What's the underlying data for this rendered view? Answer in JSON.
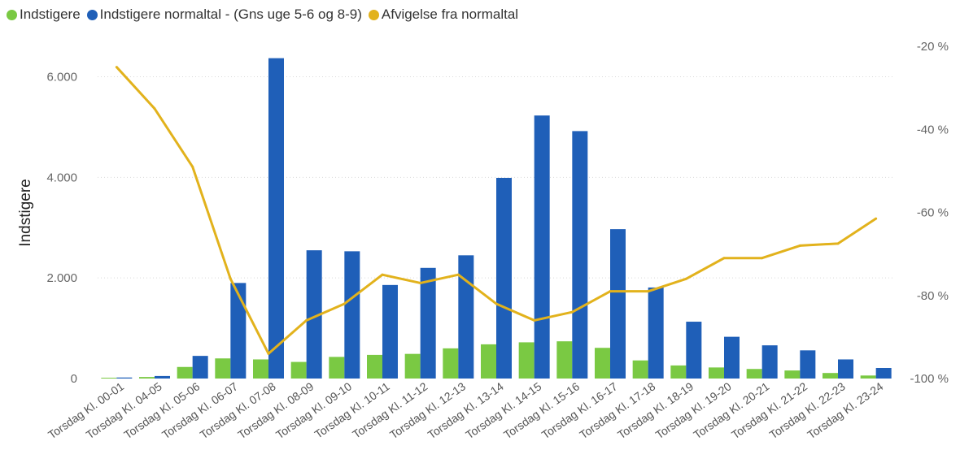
{
  "chart_data": {
    "type": "bar+line",
    "categories": [
      "Torsdag Kl. 00-01",
      "Torsdag Kl. 04-05",
      "Torsdag Kl. 05-06",
      "Torsdag Kl. 06-07",
      "Torsdag Kl. 07-08",
      "Torsdag Kl. 08-09",
      "Torsdag Kl. 09-10",
      "Torsdag Kl. 10-11",
      "Torsdag Kl. 11-12",
      "Torsdag Kl. 12-13",
      "Torsdag Kl. 13-14",
      "Torsdag Kl. 14-15",
      "Torsdag Kl. 15-16",
      "Torsdag Kl. 16-17",
      "Torsdag Kl. 17-18",
      "Torsdag Kl. 18-19",
      "Torsdag Kl. 19-20",
      "Torsdag Kl. 20-21",
      "Torsdag Kl. 21-22",
      "Torsdag Kl. 22-23",
      "Torsdag Kl. 23-24"
    ],
    "series": [
      {
        "name": "Indstigere",
        "kind": "bar",
        "axis": "left",
        "color": "#7ac943",
        "values": [
          10,
          30,
          230,
          400,
          380,
          330,
          430,
          470,
          490,
          600,
          680,
          720,
          740,
          610,
          360,
          260,
          220,
          190,
          160,
          110,
          60
        ]
      },
      {
        "name": "Indstigere normaltal - (Gns uge 5-6 og 8-9)",
        "kind": "bar",
        "axis": "left",
        "color": "#1f5fb8",
        "values": [
          20,
          50,
          450,
          1900,
          6370,
          2550,
          2530,
          1860,
          2200,
          2450,
          3990,
          5230,
          4920,
          2970,
          1810,
          1130,
          830,
          660,
          560,
          380,
          210
        ]
      },
      {
        "name": "Afvigelse fra normaltal",
        "kind": "line",
        "axis": "right",
        "color": "#e2b21c",
        "values": [
          -25,
          -35,
          -49,
          -76,
          -94,
          -86,
          -82,
          -75,
          -77,
          -75,
          -82,
          -86,
          -84,
          -79,
          -79,
          -76,
          -71,
          -71,
          -68,
          -67.5,
          -61.5
        ]
      }
    ],
    "ylabel": "Indstigere",
    "ylim": [
      0,
      6800
    ],
    "yticks": [
      0,
      2000,
      4000,
      6000
    ],
    "ytick_labels": [
      "0",
      "2.000",
      "4.000",
      "6.000"
    ],
    "y2lim": [
      -100,
      -20
    ],
    "y2ticks": [
      -20,
      -40,
      -60,
      -80,
      -100
    ],
    "y2tick_labels": [
      "-20 %",
      "-40 %",
      "-60 %",
      "-80 %",
      "-100 %"
    ],
    "legend": "top-left",
    "grid": true
  }
}
